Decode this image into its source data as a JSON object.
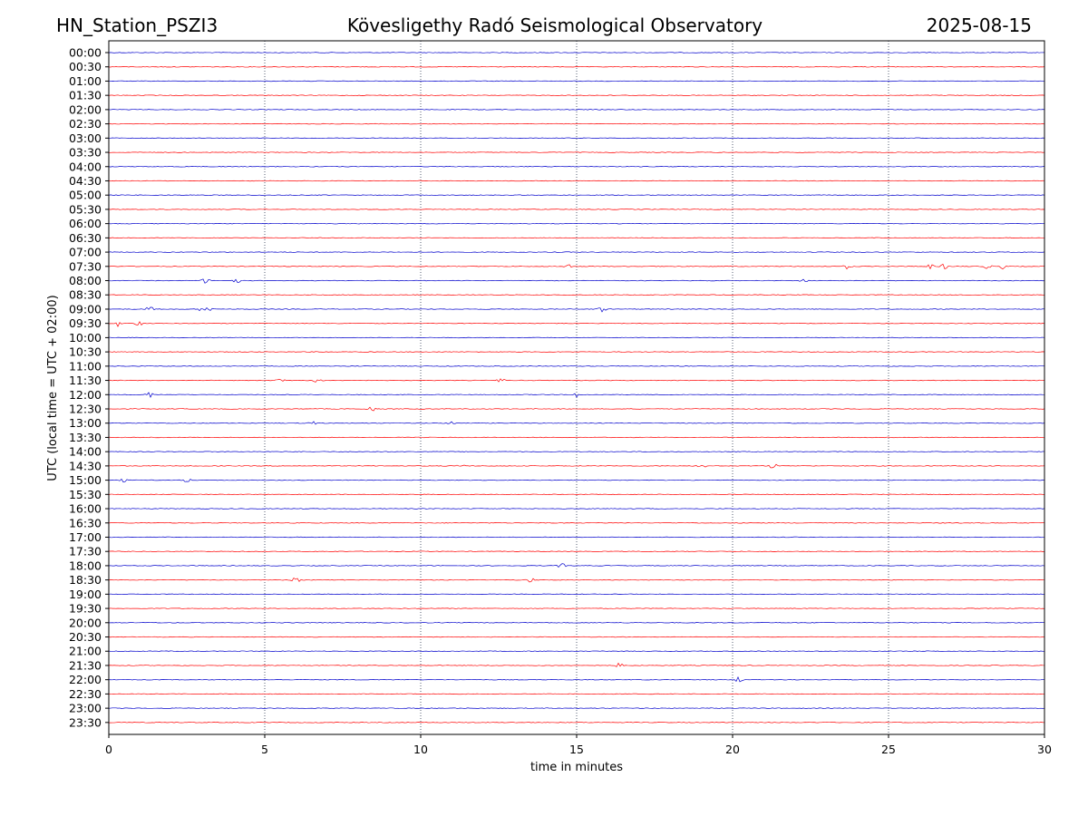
{
  "header": {
    "left": "HN_Station_PSZI3",
    "center": "Kövesligethy Radó Seismological Observatory",
    "right": "2025-08-15"
  },
  "chart_data": {
    "type": "line",
    "title": "Kövesligethy Radó Seismological Observatory",
    "xlabel": "time in minutes",
    "ylabel": "UTC (local time = UTC + 02:00)",
    "xlim": [
      0,
      30
    ],
    "xticks": [
      0,
      5,
      10,
      15,
      20,
      25,
      30
    ],
    "vertical_gridlines_at": [
      5,
      10,
      15,
      20,
      25
    ],
    "grid_style": "dotted",
    "trace_colors": [
      "#0000cc",
      "#ff0000"
    ],
    "rows": [
      "00:00",
      "00:30",
      "01:00",
      "01:30",
      "02:00",
      "02:30",
      "03:00",
      "03:30",
      "04:00",
      "04:30",
      "05:00",
      "05:30",
      "06:00",
      "06:30",
      "07:00",
      "07:30",
      "08:00",
      "08:30",
      "09:00",
      "09:30",
      "10:00",
      "10:30",
      "11:00",
      "11:30",
      "12:00",
      "12:30",
      "13:00",
      "13:30",
      "14:00",
      "14:30",
      "15:00",
      "15:30",
      "16:00",
      "16:30",
      "17:00",
      "17:30",
      "18:00",
      "18:30",
      "19:00",
      "19:30",
      "20:00",
      "20:30",
      "21:00",
      "21:30",
      "22:00",
      "22:30",
      "23:00",
      "23:30"
    ],
    "events": [
      {
        "row": "07:30",
        "minutes": [
          14.7,
          23.7,
          26.3,
          26.8,
          28.2,
          28.7
        ]
      },
      {
        "row": "08:00",
        "minutes": [
          3.1,
          4.1,
          22.3
        ]
      },
      {
        "row": "09:00",
        "minutes": [
          1.3,
          3.0,
          3.2,
          15.8
        ]
      },
      {
        "row": "09:30",
        "minutes": [
          0.3,
          0.95
        ]
      },
      {
        "row": "11:30",
        "minutes": [
          5.5,
          6.7,
          12.6
        ]
      },
      {
        "row": "12:00",
        "minutes": [
          1.3,
          15.0
        ]
      },
      {
        "row": "12:30",
        "minutes": [
          8.4
        ]
      },
      {
        "row": "13:00",
        "minutes": [
          6.5,
          11.0
        ]
      },
      {
        "row": "14:30",
        "minutes": [
          11.3,
          19.0,
          21.3
        ]
      },
      {
        "row": "15:00",
        "minutes": [
          0.5,
          2.5
        ]
      },
      {
        "row": "18:00",
        "minutes": [
          14.5
        ]
      },
      {
        "row": "18:30",
        "minutes": [
          6.0,
          13.5
        ]
      },
      {
        "row": "21:30",
        "minutes": [
          16.4
        ]
      },
      {
        "row": "22:00",
        "minutes": [
          20.2
        ]
      }
    ]
  }
}
